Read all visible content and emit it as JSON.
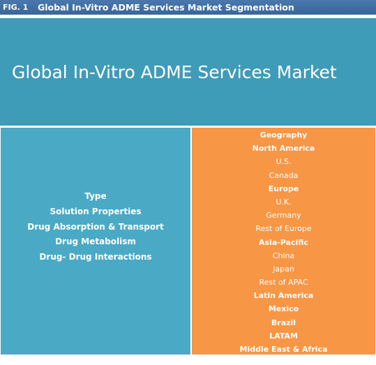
{
  "figure": {
    "label": "FIG. 1",
    "title": "Global In-Vitro ADME Services Market Segmentation"
  },
  "market": {
    "title": "Global In-Vitro ADME Services Market"
  },
  "type_segment": {
    "items": [
      "Type",
      "Solution Properties",
      "Drug Absorption & Transport",
      "Drug Metabolism",
      "Drug- Drug Interactions"
    ]
  },
  "geography_segment": {
    "items": [
      {
        "label": "Geography",
        "bold": true
      },
      {
        "label": "North America",
        "bold": true
      },
      {
        "label": "U.S.",
        "bold": false
      },
      {
        "label": "Canada",
        "bold": false
      },
      {
        "label": "Europe",
        "bold": true
      },
      {
        "label": "U.K.",
        "bold": false
      },
      {
        "label": "Germany",
        "bold": false
      },
      {
        "label": "Rest of Europe",
        "bold": false
      },
      {
        "label": "Asia-Pacific",
        "bold": true
      },
      {
        "label": "China",
        "bold": false
      },
      {
        "label": "Japan",
        "bold": false
      },
      {
        "label": "Rest of APAC",
        "bold": false
      },
      {
        "label": "Latin America",
        "bold": true
      },
      {
        "label": "Mexico",
        "bold": true
      },
      {
        "label": "Brazil",
        "bold": true
      },
      {
        "label": "LATAM",
        "bold": true
      },
      {
        "label": "Middle East & Africa",
        "bold": true
      }
    ]
  },
  "colors": {
    "header": "#3f6ea3",
    "banner": "#3f9cb8",
    "type_panel": "#4aaac5",
    "geography_panel": "#f79645"
  }
}
